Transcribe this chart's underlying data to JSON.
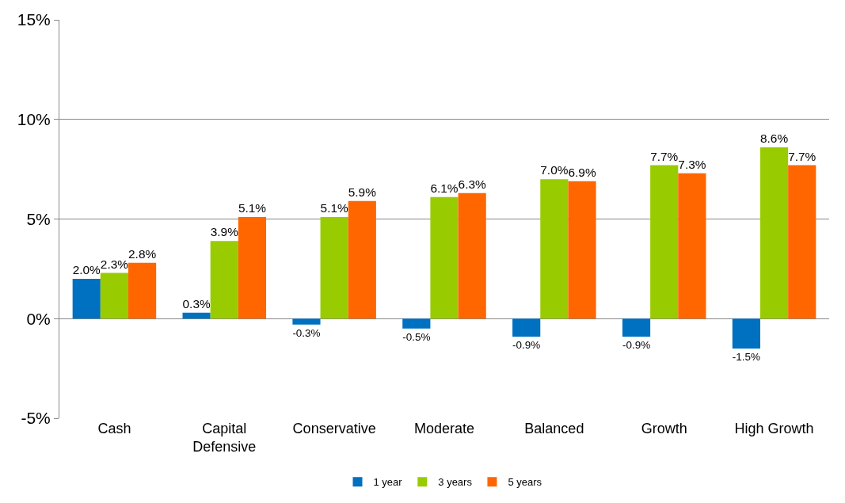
{
  "chart_data": {
    "type": "bar",
    "categories": [
      "Cash",
      "Capital Defensive",
      "Conservative",
      "Moderate",
      "Balanced",
      "Growth",
      "High Growth"
    ],
    "series": [
      {
        "name": "1 year",
        "color": "#0070c0",
        "values": [
          2.0,
          0.3,
          -0.3,
          -0.5,
          -0.9,
          -0.9,
          -1.5
        ],
        "value_labels": [
          "2.0%",
          "0.3%",
          "-0.3%",
          "-0.5%",
          "-0.9%",
          "-0.9%",
          "-1.5%"
        ]
      },
      {
        "name": "3 years",
        "color": "#99cc00",
        "values": [
          2.3,
          3.9,
          5.1,
          6.1,
          7.0,
          7.7,
          8.6
        ],
        "value_labels": [
          "2.3%",
          "3.9%",
          "5.1%",
          "6.1%",
          "7.0%",
          "7.7%",
          "8.6%"
        ]
      },
      {
        "name": "5 years",
        "color": "#ff6600",
        "values": [
          2.8,
          5.1,
          5.9,
          6.3,
          6.9,
          7.3,
          7.7
        ],
        "value_labels": [
          "2.8%",
          "5.1%",
          "5.9%",
          "6.3%",
          "6.9%",
          "7.3%",
          "7.7%"
        ]
      }
    ],
    "ylim": [
      -5,
      15
    ],
    "yticks": [
      {
        "value": -5,
        "label": "-5%"
      },
      {
        "value": 0,
        "label": "0%"
      },
      {
        "value": 5,
        "label": "5%"
      },
      {
        "value": 10,
        "label": "10%"
      },
      {
        "value": 15,
        "label": "15%"
      }
    ],
    "grid": "y",
    "legend": "bottom"
  }
}
